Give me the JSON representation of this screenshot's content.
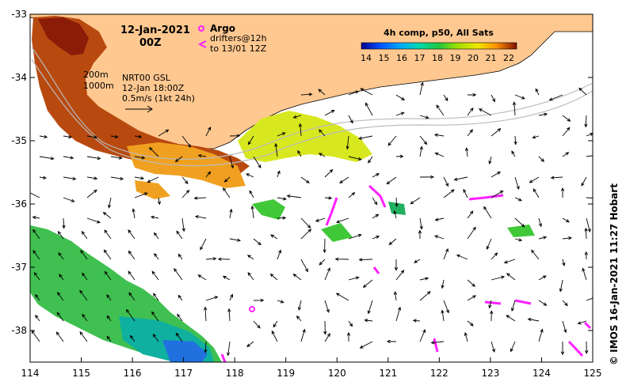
{
  "map": {
    "date_title": "12-Jan-2021",
    "time_title": "00Z",
    "argo_label": "Argo",
    "drifter_label_1": "drifters@12h",
    "drifter_label_2": "to 13/01 12Z",
    "isobath_200": "200m",
    "isobath_1000": "1000m",
    "current_product": "NRT00 GSL",
    "current_time": "12-Jan 18:00Z",
    "scale_label": "0.5m/s (1kt 24h)",
    "colorbar_title": "4h comp, p50, All Sats",
    "colorbar_ticks": [
      "14",
      "15",
      "16",
      "17",
      "18",
      "19",
      "20",
      "21",
      "22"
    ],
    "colorbar_colors": [
      "#00008f",
      "#0050ff",
      "#00a8ff",
      "#00d8b0",
      "#20c840",
      "#a0e000",
      "#f0e800",
      "#ff9000",
      "#d04000",
      "#801000"
    ],
    "credit": "© IMOS 16-Jan-2021 11:27 Hobart",
    "x_ticks": [
      "114",
      "115",
      "116",
      "117",
      "118",
      "119",
      "120",
      "121",
      "122",
      "123",
      "124",
      "125"
    ],
    "y_ticks": [
      "-33",
      "-34",
      "-35",
      "-36",
      "-37",
      "-38"
    ],
    "land_color": "#ffc890"
  }
}
